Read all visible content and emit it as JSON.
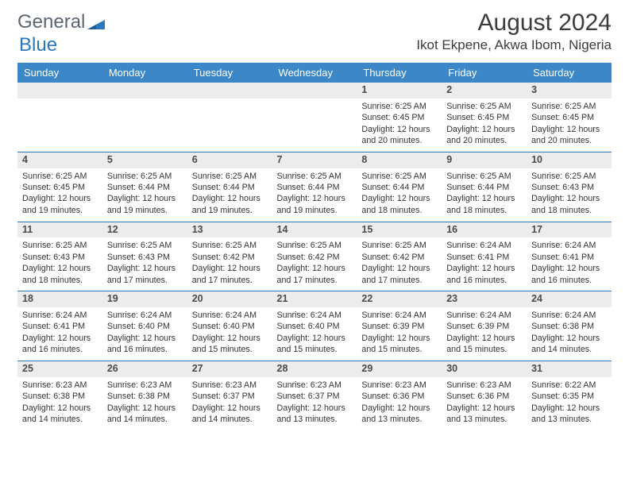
{
  "brand": {
    "word1": "General",
    "word2": "Blue"
  },
  "title": {
    "month": "August 2024",
    "location": "Ikot Ekpene, Akwa Ibom, Nigeria"
  },
  "colors": {
    "header_bg": "#3b87c8",
    "header_text": "#ffffff",
    "row_divider": "#2a77bd",
    "daynum_bg": "#ececec",
    "text": "#333333",
    "logo_gray": "#5b6670",
    "logo_blue": "#2a77bd"
  },
  "weekday_labels": [
    "Sunday",
    "Monday",
    "Tuesday",
    "Wednesday",
    "Thursday",
    "Friday",
    "Saturday"
  ],
  "weeks": [
    [
      null,
      null,
      null,
      null,
      {
        "n": "1",
        "sr": "6:25 AM",
        "ss": "6:45 PM",
        "dl": "12 hours and 20 minutes."
      },
      {
        "n": "2",
        "sr": "6:25 AM",
        "ss": "6:45 PM",
        "dl": "12 hours and 20 minutes."
      },
      {
        "n": "3",
        "sr": "6:25 AM",
        "ss": "6:45 PM",
        "dl": "12 hours and 20 minutes."
      }
    ],
    [
      {
        "n": "4",
        "sr": "6:25 AM",
        "ss": "6:45 PM",
        "dl": "12 hours and 19 minutes."
      },
      {
        "n": "5",
        "sr": "6:25 AM",
        "ss": "6:44 PM",
        "dl": "12 hours and 19 minutes."
      },
      {
        "n": "6",
        "sr": "6:25 AM",
        "ss": "6:44 PM",
        "dl": "12 hours and 19 minutes."
      },
      {
        "n": "7",
        "sr": "6:25 AM",
        "ss": "6:44 PM",
        "dl": "12 hours and 19 minutes."
      },
      {
        "n": "8",
        "sr": "6:25 AM",
        "ss": "6:44 PM",
        "dl": "12 hours and 18 minutes."
      },
      {
        "n": "9",
        "sr": "6:25 AM",
        "ss": "6:44 PM",
        "dl": "12 hours and 18 minutes."
      },
      {
        "n": "10",
        "sr": "6:25 AM",
        "ss": "6:43 PM",
        "dl": "12 hours and 18 minutes."
      }
    ],
    [
      {
        "n": "11",
        "sr": "6:25 AM",
        "ss": "6:43 PM",
        "dl": "12 hours and 18 minutes."
      },
      {
        "n": "12",
        "sr": "6:25 AM",
        "ss": "6:43 PM",
        "dl": "12 hours and 17 minutes."
      },
      {
        "n": "13",
        "sr": "6:25 AM",
        "ss": "6:42 PM",
        "dl": "12 hours and 17 minutes."
      },
      {
        "n": "14",
        "sr": "6:25 AM",
        "ss": "6:42 PM",
        "dl": "12 hours and 17 minutes."
      },
      {
        "n": "15",
        "sr": "6:25 AM",
        "ss": "6:42 PM",
        "dl": "12 hours and 17 minutes."
      },
      {
        "n": "16",
        "sr": "6:24 AM",
        "ss": "6:41 PM",
        "dl": "12 hours and 16 minutes."
      },
      {
        "n": "17",
        "sr": "6:24 AM",
        "ss": "6:41 PM",
        "dl": "12 hours and 16 minutes."
      }
    ],
    [
      {
        "n": "18",
        "sr": "6:24 AM",
        "ss": "6:41 PM",
        "dl": "12 hours and 16 minutes."
      },
      {
        "n": "19",
        "sr": "6:24 AM",
        "ss": "6:40 PM",
        "dl": "12 hours and 16 minutes."
      },
      {
        "n": "20",
        "sr": "6:24 AM",
        "ss": "6:40 PM",
        "dl": "12 hours and 15 minutes."
      },
      {
        "n": "21",
        "sr": "6:24 AM",
        "ss": "6:40 PM",
        "dl": "12 hours and 15 minutes."
      },
      {
        "n": "22",
        "sr": "6:24 AM",
        "ss": "6:39 PM",
        "dl": "12 hours and 15 minutes."
      },
      {
        "n": "23",
        "sr": "6:24 AM",
        "ss": "6:39 PM",
        "dl": "12 hours and 15 minutes."
      },
      {
        "n": "24",
        "sr": "6:24 AM",
        "ss": "6:38 PM",
        "dl": "12 hours and 14 minutes."
      }
    ],
    [
      {
        "n": "25",
        "sr": "6:23 AM",
        "ss": "6:38 PM",
        "dl": "12 hours and 14 minutes."
      },
      {
        "n": "26",
        "sr": "6:23 AM",
        "ss": "6:38 PM",
        "dl": "12 hours and 14 minutes."
      },
      {
        "n": "27",
        "sr": "6:23 AM",
        "ss": "6:37 PM",
        "dl": "12 hours and 14 minutes."
      },
      {
        "n": "28",
        "sr": "6:23 AM",
        "ss": "6:37 PM",
        "dl": "12 hours and 13 minutes."
      },
      {
        "n": "29",
        "sr": "6:23 AM",
        "ss": "6:36 PM",
        "dl": "12 hours and 13 minutes."
      },
      {
        "n": "30",
        "sr": "6:23 AM",
        "ss": "6:36 PM",
        "dl": "12 hours and 13 minutes."
      },
      {
        "n": "31",
        "sr": "6:22 AM",
        "ss": "6:35 PM",
        "dl": "12 hours and 13 minutes."
      }
    ]
  ],
  "labels": {
    "sunrise": "Sunrise:",
    "sunset": "Sunset:",
    "daylight": "Daylight:"
  }
}
